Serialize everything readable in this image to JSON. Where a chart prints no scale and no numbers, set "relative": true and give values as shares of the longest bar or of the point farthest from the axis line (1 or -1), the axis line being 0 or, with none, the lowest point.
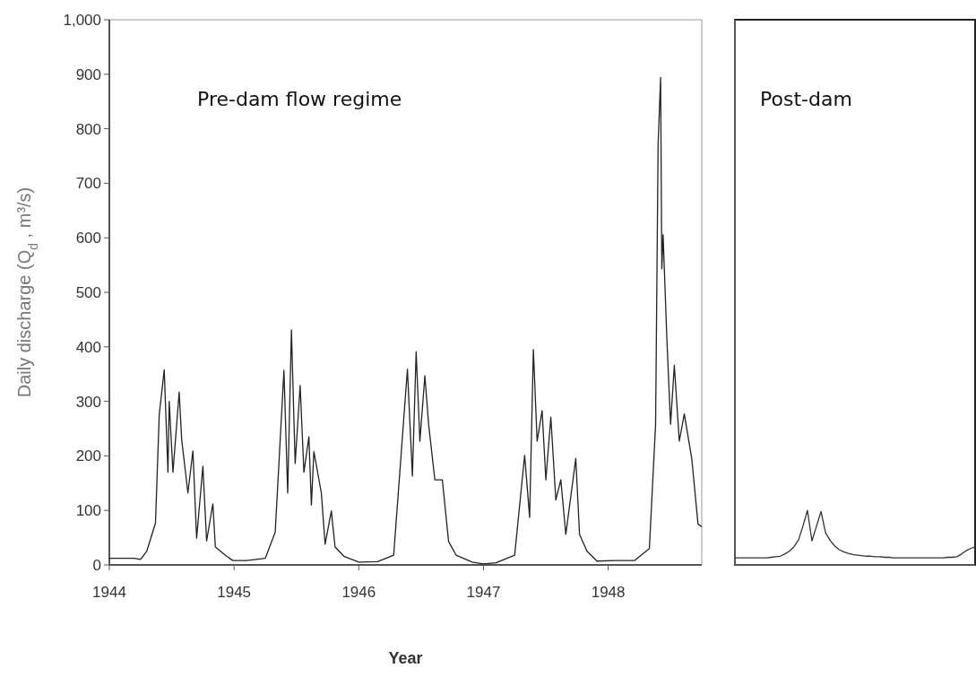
{
  "chart_data": [
    {
      "type": "line",
      "xlabel": "Year",
      "ylabel": "Daily discharge (Q$_{d}$ , m³/s)",
      "annotations": [
        "Pre-dam flow regime"
      ],
      "xlim": [
        1944,
        1948.75
      ],
      "ylim": [
        0,
        1000
      ],
      "xticks": [
        1944,
        1945,
        1946,
        1947,
        1948
      ],
      "yticks": [
        0,
        100,
        200,
        300,
        400,
        500,
        600,
        700,
        800,
        900,
        {
          "value": 1000,
          "label": "1,000"
        }
      ],
      "series": [
        {
          "color": "#222222",
          "x": [
            1944,
            1944.1,
            1944.2,
            1944.25,
            1944.3,
            1944.37,
            1944.4,
            1944.44,
            1944.47,
            1944.48,
            1944.51,
            1944.56,
            1944.58,
            1944.63,
            1944.67,
            1944.7,
            1944.75,
            1944.78,
            1944.83,
            1944.85,
            1944.94,
            1944.99,
            1945.1,
            1945.25,
            1945.33,
            1945.4,
            1945.43,
            1945.46,
            1945.49,
            1945.53,
            1945.56,
            1945.6,
            1945.62,
            1945.64,
            1945.7,
            1945.73,
            1945.78,
            1945.81,
            1945.88,
            1946,
            1946.15,
            1946.28,
            1946.39,
            1946.43,
            1946.46,
            1946.49,
            1946.53,
            1946.56,
            1946.61,
            1946.67,
            1946.72,
            1946.78,
            1946.91,
            1947,
            1947.1,
            1947.25,
            1947.33,
            1947.37,
            1947.4,
            1947.43,
            1947.47,
            1947.5,
            1947.54,
            1947.58,
            1947.62,
            1947.66,
            1947.74,
            1947.77,
            1947.83,
            1947.91,
            1948.05,
            1948.21,
            1948.33,
            1948.38,
            1948.4,
            1948.42,
            1948.43,
            1948.44,
            1948.47,
            1948.5,
            1948.53,
            1948.57,
            1948.61,
            1948.67,
            1948.72,
            1948.75
          ],
          "values": [
            12,
            12,
            12,
            10,
            25,
            77,
            275,
            358,
            170,
            300,
            170,
            317,
            230,
            132,
            209,
            49,
            181,
            44,
            112,
            33,
            16,
            8,
            8,
            12,
            60,
            357,
            132,
            431,
            186,
            329,
            170,
            235,
            110,
            208,
            132,
            38,
            99,
            33,
            16,
            5,
            6,
            18,
            359,
            163,
            391,
            227,
            347,
            258,
            156,
            156,
            43,
            18,
            5,
            2,
            4,
            18,
            201,
            87,
            395,
            227,
            283,
            156,
            271,
            119,
            156,
            56,
            195,
            56,
            25,
            7,
            8,
            8,
            30,
            258,
            771,
            894,
            543,
            606,
            416,
            258,
            366,
            227,
            277,
            195,
            75,
            70
          ]
        }
      ]
    },
    {
      "type": "line",
      "annotations": [
        "Post-dam"
      ],
      "relative": true,
      "categories": [
        null,
        null,
        null,
        null,
        null,
        null,
        null,
        null,
        null,
        null,
        null,
        null,
        null,
        null,
        null,
        null,
        null,
        null,
        null,
        null,
        null,
        null,
        null,
        null,
        null,
        null,
        null,
        null,
        null,
        null,
        null,
        null,
        null,
        null,
        null,
        null,
        null,
        null,
        null,
        null,
        null,
        null,
        null,
        null,
        null,
        null,
        null,
        null,
        null,
        null,
        null,
        null,
        null,
        null
      ],
      "series": [
        {
          "color": "#333333",
          "values": [
            0.13,
            0.13,
            0.13,
            0.13,
            0.13,
            0.13,
            0.13,
            0.13,
            0.14,
            0.15,
            0.16,
            0.2,
            0.25,
            0.33,
            0.45,
            0.71,
            1,
            0.44,
            0.71,
            0.98,
            0.59,
            0.45,
            0.35,
            0.28,
            0.24,
            0.21,
            0.19,
            0.18,
            0.17,
            0.16,
            0.16,
            0.15,
            0.15,
            0.14,
            0.14,
            0.13,
            0.13,
            0.13,
            0.13,
            0.13,
            0.13,
            0.13,
            0.13,
            0.13,
            0.13,
            0.13,
            0.13,
            0.14,
            0.14,
            0.15,
            0.2,
            0.26,
            0.3,
            0.33
          ]
        }
      ]
    }
  ]
}
